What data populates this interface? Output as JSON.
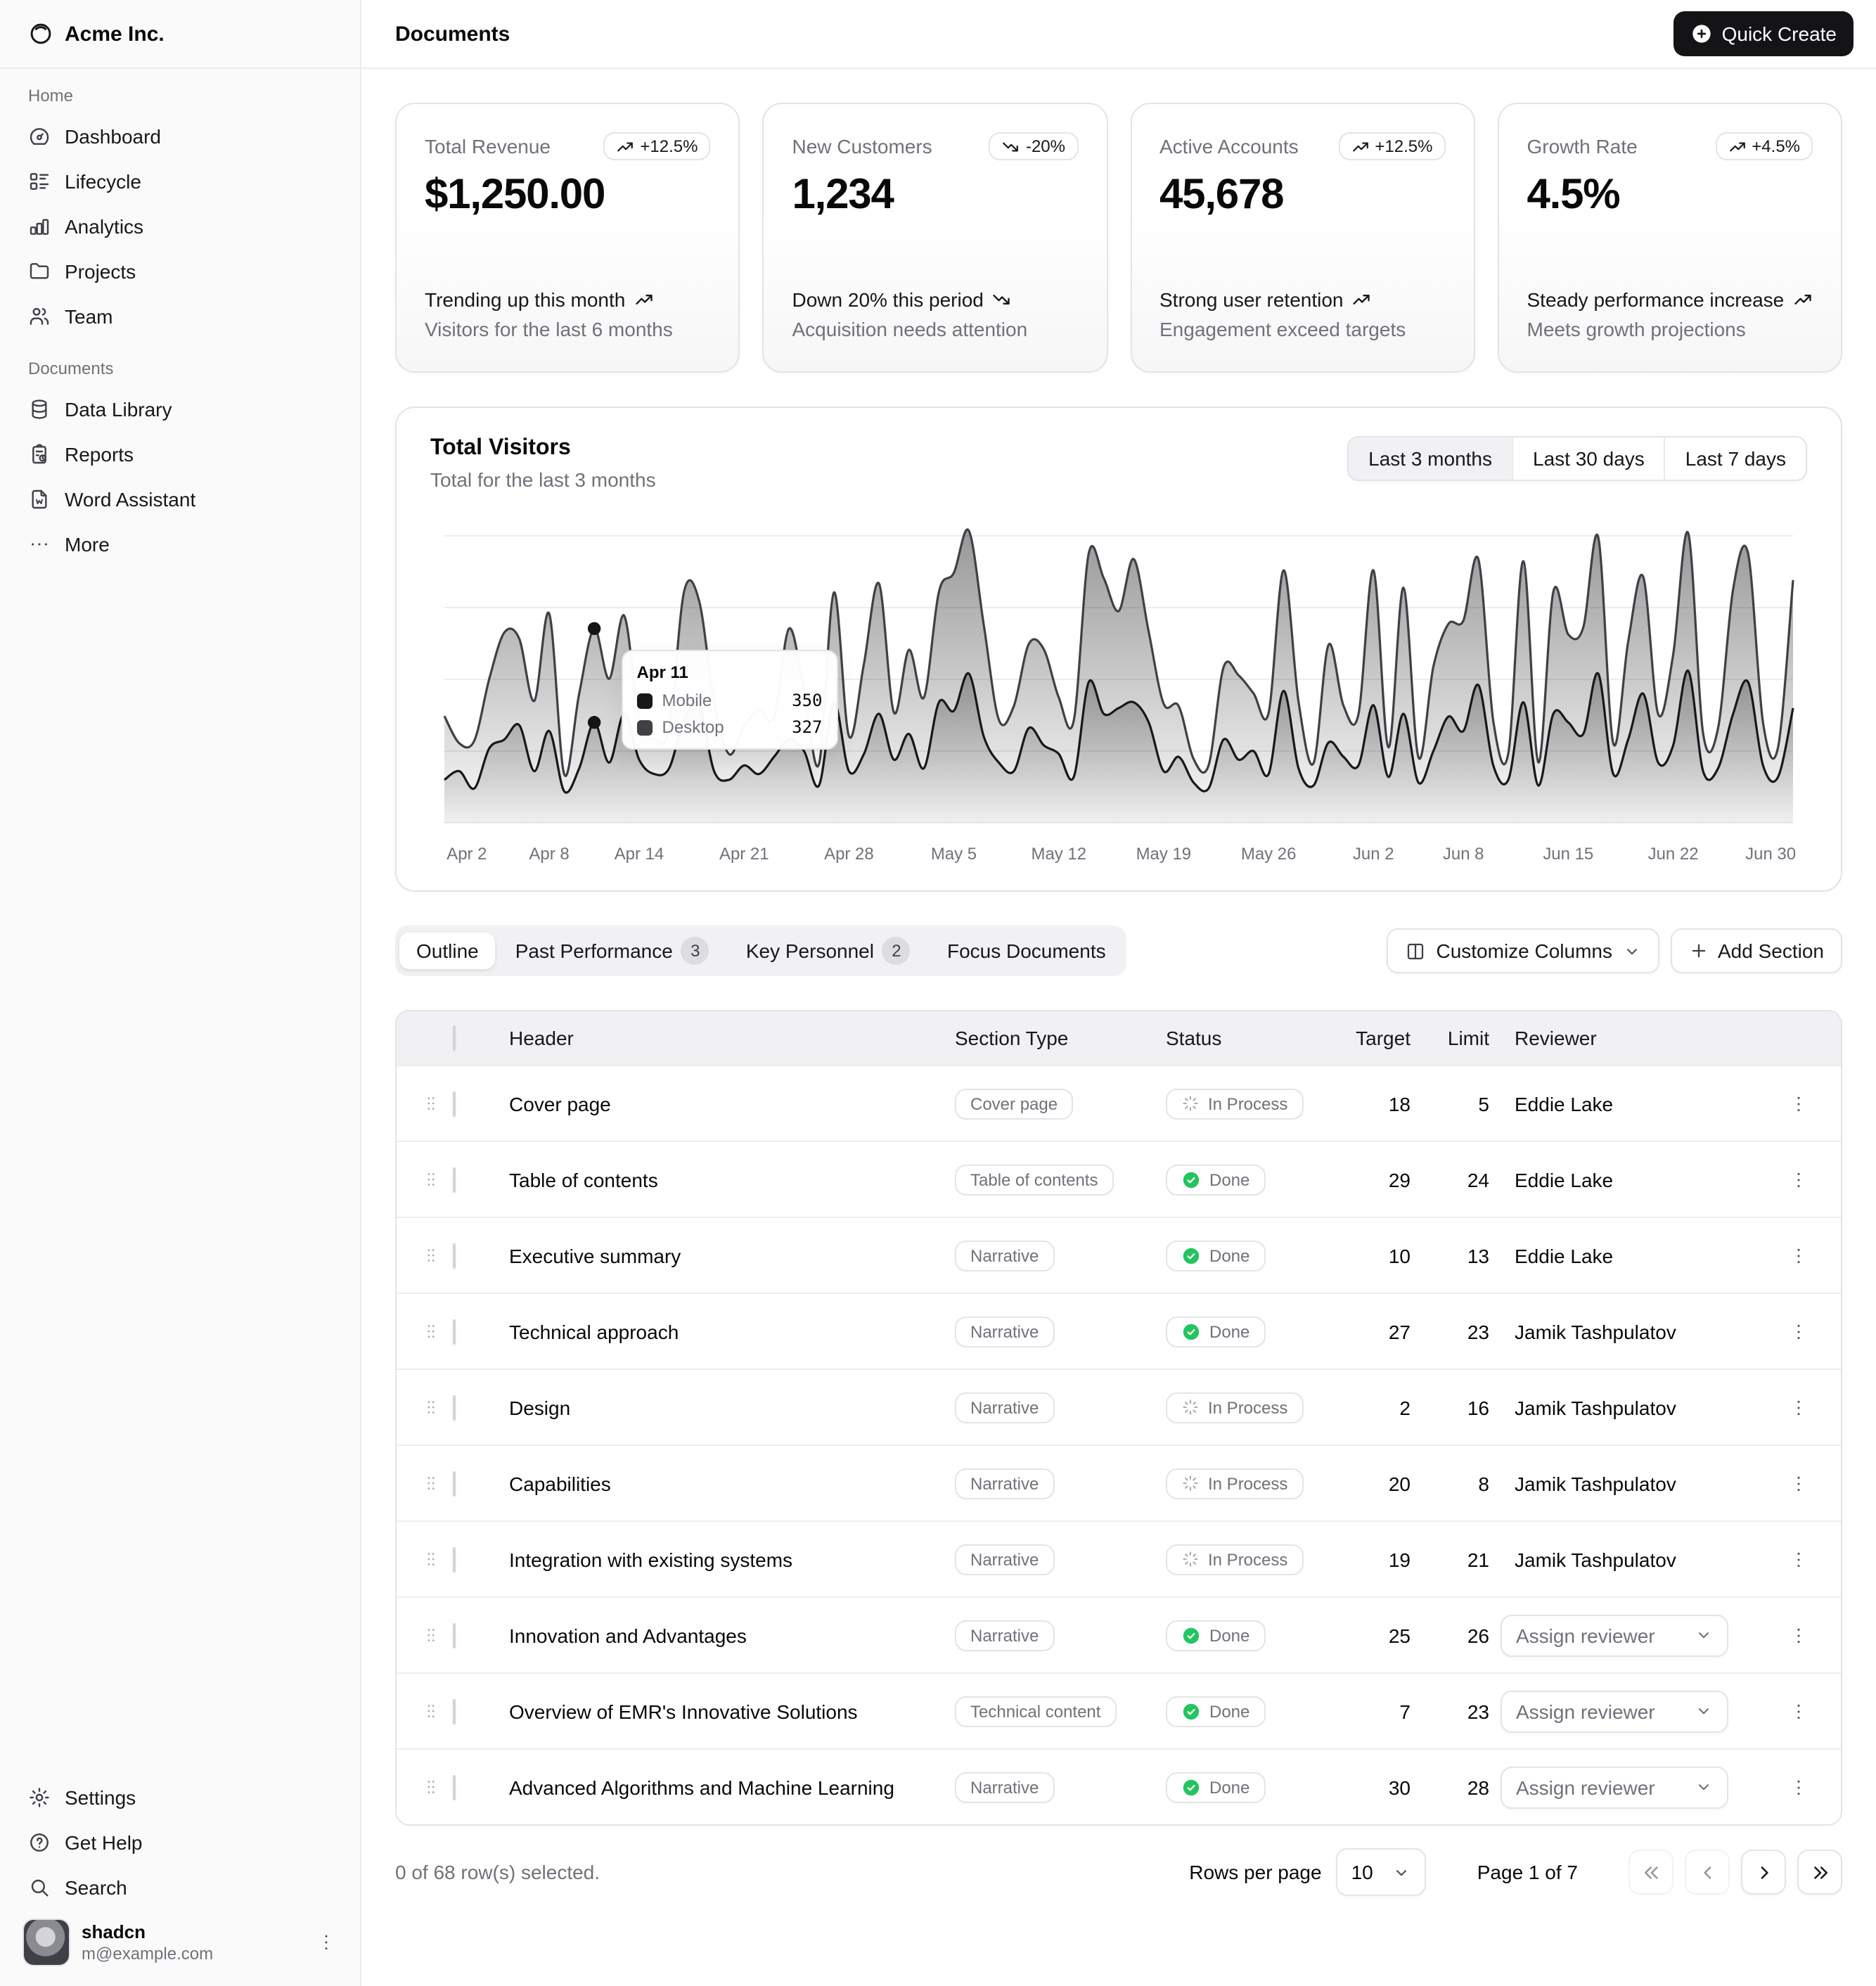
{
  "brand": {
    "name": "Acme Inc."
  },
  "header": {
    "title": "Documents",
    "quick_create_label": "Quick Create"
  },
  "colors": {
    "primary": "#18181b",
    "done_green": "#22c55e",
    "muted_text": "#71717a",
    "border": "#e4e4e7"
  },
  "sidebar": {
    "sections": [
      {
        "label": "Home",
        "items": [
          {
            "icon": "dashboard",
            "label": "Dashboard"
          },
          {
            "icon": "list-details",
            "label": "Lifecycle"
          },
          {
            "icon": "chart-bar",
            "label": "Analytics"
          },
          {
            "icon": "folder",
            "label": "Projects"
          },
          {
            "icon": "users",
            "label": "Team"
          }
        ]
      },
      {
        "label": "Documents",
        "items": [
          {
            "icon": "database",
            "label": "Data Library"
          },
          {
            "icon": "report",
            "label": "Reports"
          },
          {
            "icon": "file-w",
            "label": "Word Assistant"
          },
          {
            "icon": "dots",
            "label": "More"
          }
        ]
      }
    ],
    "footer_items": [
      {
        "icon": "settings",
        "label": "Settings"
      },
      {
        "icon": "help",
        "label": "Get Help"
      },
      {
        "icon": "search",
        "label": "Search"
      }
    ],
    "user": {
      "name": "shadcn",
      "email": "m@example.com"
    }
  },
  "stat_cards": [
    {
      "label": "Total Revenue",
      "badge": "+12.5%",
      "trend": "up",
      "value": "$1,250.00",
      "footer_title": "Trending up this month",
      "footer_desc": "Visitors for the last 6 months"
    },
    {
      "label": "New Customers",
      "badge": "-20%",
      "trend": "down",
      "value": "1,234",
      "footer_title": "Down 20% this period",
      "footer_desc": "Acquisition needs attention"
    },
    {
      "label": "Active Accounts",
      "badge": "+12.5%",
      "trend": "up",
      "value": "45,678",
      "footer_title": "Strong user retention",
      "footer_desc": "Engagement exceed targets"
    },
    {
      "label": "Growth Rate",
      "badge": "+4.5%",
      "trend": "up",
      "value": "4.5%",
      "footer_title": "Steady performance increase",
      "footer_desc": "Meets growth projections"
    }
  ],
  "chart": {
    "title": "Total Visitors",
    "subtitle": "Total for the last 3 months",
    "range_options": [
      "Last 3 months",
      "Last 30 days",
      "Last 7 days"
    ],
    "active_range": "Last 3 months",
    "tooltip": {
      "date": "Apr 11",
      "items": [
        {
          "name": "Mobile",
          "value": "350",
          "color": "#18181b"
        },
        {
          "name": "Desktop",
          "value": "327",
          "color": "#3f3f46"
        }
      ]
    }
  },
  "chart_data": {
    "type": "area",
    "stacked": true,
    "grid": true,
    "legend_position": "none",
    "ylim": [
      0,
      1000
    ],
    "y_gridline_values": [
      0,
      250,
      500,
      750,
      1000
    ],
    "x_tick_labels": [
      "Apr 2",
      "Apr 8",
      "Apr 14",
      "Apr 21",
      "Apr 28",
      "May 5",
      "May 12",
      "May 19",
      "May 26",
      "Jun 2",
      "Jun 8",
      "Jun 15",
      "Jun 22",
      "Jun 30"
    ],
    "x": [
      "2024-04-01",
      "2024-04-02",
      "2024-04-03",
      "2024-04-04",
      "2024-04-05",
      "2024-04-06",
      "2024-04-07",
      "2024-04-08",
      "2024-04-09",
      "2024-04-10",
      "2024-04-11",
      "2024-04-12",
      "2024-04-13",
      "2024-04-14",
      "2024-04-15",
      "2024-04-16",
      "2024-04-17",
      "2024-04-18",
      "2024-04-19",
      "2024-04-20",
      "2024-04-21",
      "2024-04-22",
      "2024-04-23",
      "2024-04-24",
      "2024-04-25",
      "2024-04-26",
      "2024-04-27",
      "2024-04-28",
      "2024-04-29",
      "2024-04-30",
      "2024-05-01",
      "2024-05-02",
      "2024-05-03",
      "2024-05-04",
      "2024-05-05",
      "2024-05-06",
      "2024-05-07",
      "2024-05-08",
      "2024-05-09",
      "2024-05-10",
      "2024-05-11",
      "2024-05-12",
      "2024-05-13",
      "2024-05-14",
      "2024-05-15",
      "2024-05-16",
      "2024-05-17",
      "2024-05-18",
      "2024-05-19",
      "2024-05-20",
      "2024-05-21",
      "2024-05-22",
      "2024-05-23",
      "2024-05-24",
      "2024-05-25",
      "2024-05-26",
      "2024-05-27",
      "2024-05-28",
      "2024-05-29",
      "2024-05-30",
      "2024-05-31",
      "2024-06-01",
      "2024-06-02",
      "2024-06-03",
      "2024-06-04",
      "2024-06-05",
      "2024-06-06",
      "2024-06-07",
      "2024-06-08",
      "2024-06-09",
      "2024-06-10",
      "2024-06-11",
      "2024-06-12",
      "2024-06-13",
      "2024-06-14",
      "2024-06-15",
      "2024-06-16",
      "2024-06-17",
      "2024-06-18",
      "2024-06-19",
      "2024-06-20",
      "2024-06-21",
      "2024-06-22",
      "2024-06-23",
      "2024-06-24",
      "2024-06-25",
      "2024-06-26",
      "2024-06-27",
      "2024-06-28",
      "2024-06-29",
      "2024-06-30"
    ],
    "series": [
      {
        "name": "Mobile",
        "color": "#18181b",
        "values": [
          150,
          180,
          120,
          260,
          290,
          340,
          180,
          320,
          110,
          190,
          350,
          210,
          380,
          220,
          170,
          190,
          360,
          410,
          180,
          150,
          200,
          170,
          230,
          290,
          250,
          130,
          420,
          180,
          240,
          380,
          220,
          310,
          190,
          420,
          390,
          520,
          300,
          210,
          180,
          330,
          270,
          240,
          160,
          490,
          380,
          400,
          420,
          350,
          180,
          230,
          140,
          120,
          290,
          220,
          250,
          170,
          460,
          190,
          130,
          280,
          230,
          200,
          410,
          160,
          380,
          140,
          250,
          370,
          320,
          480,
          200,
          150,
          420,
          130,
          380,
          350,
          310,
          520,
          170,
          290,
          450,
          210,
          270,
          530,
          180,
          190,
          380,
          490,
          200,
          160,
          400
        ]
      },
      {
        "name": "Desktop",
        "color": "#3f3f46",
        "values": [
          222,
          97,
          167,
          242,
          373,
          301,
          245,
          409,
          59,
          261,
          327,
          292,
          342,
          137,
          120,
          138,
          446,
          364,
          243,
          89,
          137,
          224,
          138,
          387,
          215,
          75,
          383,
          122,
          315,
          454,
          165,
          293,
          247,
          385,
          481,
          498,
          388,
          149,
          227,
          293,
          335,
          197,
          197,
          448,
          473,
          338,
          499,
          315,
          235,
          177,
          82,
          81,
          252,
          294,
          201,
          213,
          420,
          233,
          78,
          340,
          178,
          178,
          470,
          103,
          439,
          88,
          294,
          323,
          385,
          438,
          155,
          92,
          492,
          81,
          426,
          307,
          371,
          475,
          107,
          341,
          408,
          169,
          317,
          480,
          132,
          141,
          434,
          448,
          149,
          103,
          446
        ]
      }
    ],
    "title": "Total Visitors",
    "xlabel": "",
    "ylabel": ""
  },
  "tabs": [
    {
      "label": "Outline",
      "active": true
    },
    {
      "label": "Past Performance",
      "badge": "3"
    },
    {
      "label": "Key Personnel",
      "badge": "2"
    },
    {
      "label": "Focus Documents"
    }
  ],
  "toolbar": {
    "customize_label": "Customize Columns",
    "add_label": "Add Section"
  },
  "table": {
    "columns": [
      "Header",
      "Section Type",
      "Status",
      "Target",
      "Limit",
      "Reviewer"
    ],
    "assign_label": "Assign reviewer",
    "status_done": "Done",
    "status_in_process": "In Process",
    "rows": [
      {
        "header": "Cover page",
        "type": "Cover page",
        "status": "In Process",
        "target": "18",
        "limit": "5",
        "reviewer": "Eddie Lake"
      },
      {
        "header": "Table of contents",
        "type": "Table of contents",
        "status": "Done",
        "target": "29",
        "limit": "24",
        "reviewer": "Eddie Lake"
      },
      {
        "header": "Executive summary",
        "type": "Narrative",
        "status": "Done",
        "target": "10",
        "limit": "13",
        "reviewer": "Eddie Lake"
      },
      {
        "header": "Technical approach",
        "type": "Narrative",
        "status": "Done",
        "target": "27",
        "limit": "23",
        "reviewer": "Jamik Tashpulatov"
      },
      {
        "header": "Design",
        "type": "Narrative",
        "status": "In Process",
        "target": "2",
        "limit": "16",
        "reviewer": "Jamik Tashpulatov"
      },
      {
        "header": "Capabilities",
        "type": "Narrative",
        "status": "In Process",
        "target": "20",
        "limit": "8",
        "reviewer": "Jamik Tashpulatov"
      },
      {
        "header": "Integration with existing systems",
        "type": "Narrative",
        "status": "In Process",
        "target": "19",
        "limit": "21",
        "reviewer": "Jamik Tashpulatov"
      },
      {
        "header": "Innovation and Advantages",
        "type": "Narrative",
        "status": "Done",
        "target": "25",
        "limit": "26",
        "reviewer": null
      },
      {
        "header": "Overview of EMR's Innovative Solutions",
        "type": "Technical content",
        "status": "Done",
        "target": "7",
        "limit": "23",
        "reviewer": null
      },
      {
        "header": "Advanced Algorithms and Machine Learning",
        "type": "Narrative",
        "status": "Done",
        "target": "30",
        "limit": "28",
        "reviewer": null
      }
    ]
  },
  "footer": {
    "selected_text": "0 of 68 row(s) selected.",
    "rows_per_page_label": "Rows per page",
    "rows_per_page": "10",
    "page_text": "Page 1 of 7",
    "page": 1,
    "pages": 7
  }
}
